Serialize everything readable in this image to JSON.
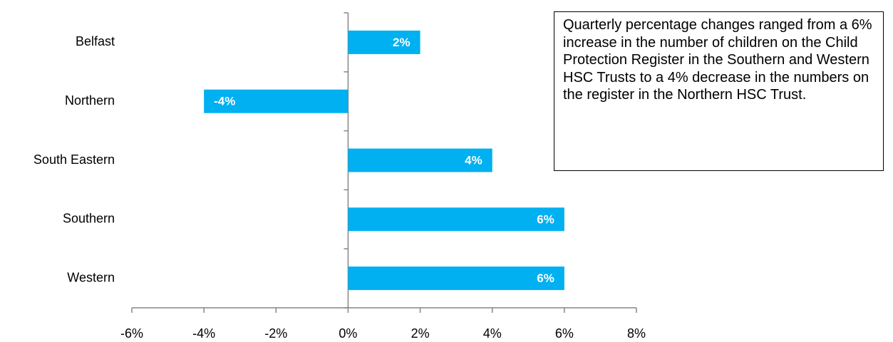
{
  "chart_data": {
    "type": "hbar",
    "categories": [
      "Belfast",
      "Northern",
      "South Eastern",
      "Southern",
      "Western"
    ],
    "values": [
      2,
      -4,
      4,
      6,
      6
    ],
    "value_labels": [
      "2%",
      "-4%",
      "4%",
      "6%",
      "6%"
    ],
    "color": "#00b0f0",
    "xlim": [
      -6,
      8
    ],
    "xticks": [
      {
        "value": -6,
        "label": "-6%"
      },
      {
        "value": -4,
        "label": "-4%"
      },
      {
        "value": -2,
        "label": "-2%"
      },
      {
        "value": 0,
        "label": "0%"
      },
      {
        "value": 2,
        "label": "2%"
      },
      {
        "value": 4,
        "label": "4%"
      },
      {
        "value": 6,
        "label": "6%"
      },
      {
        "value": 8,
        "label": "8%"
      }
    ],
    "annotation": "Quarterly percentage changes ranged from a 6% increase in the number of children on the Child Protection Register in the Southern and Western HSC Trusts to a 4% decrease in the numbers on the register in the Northern HSC Trust."
  }
}
